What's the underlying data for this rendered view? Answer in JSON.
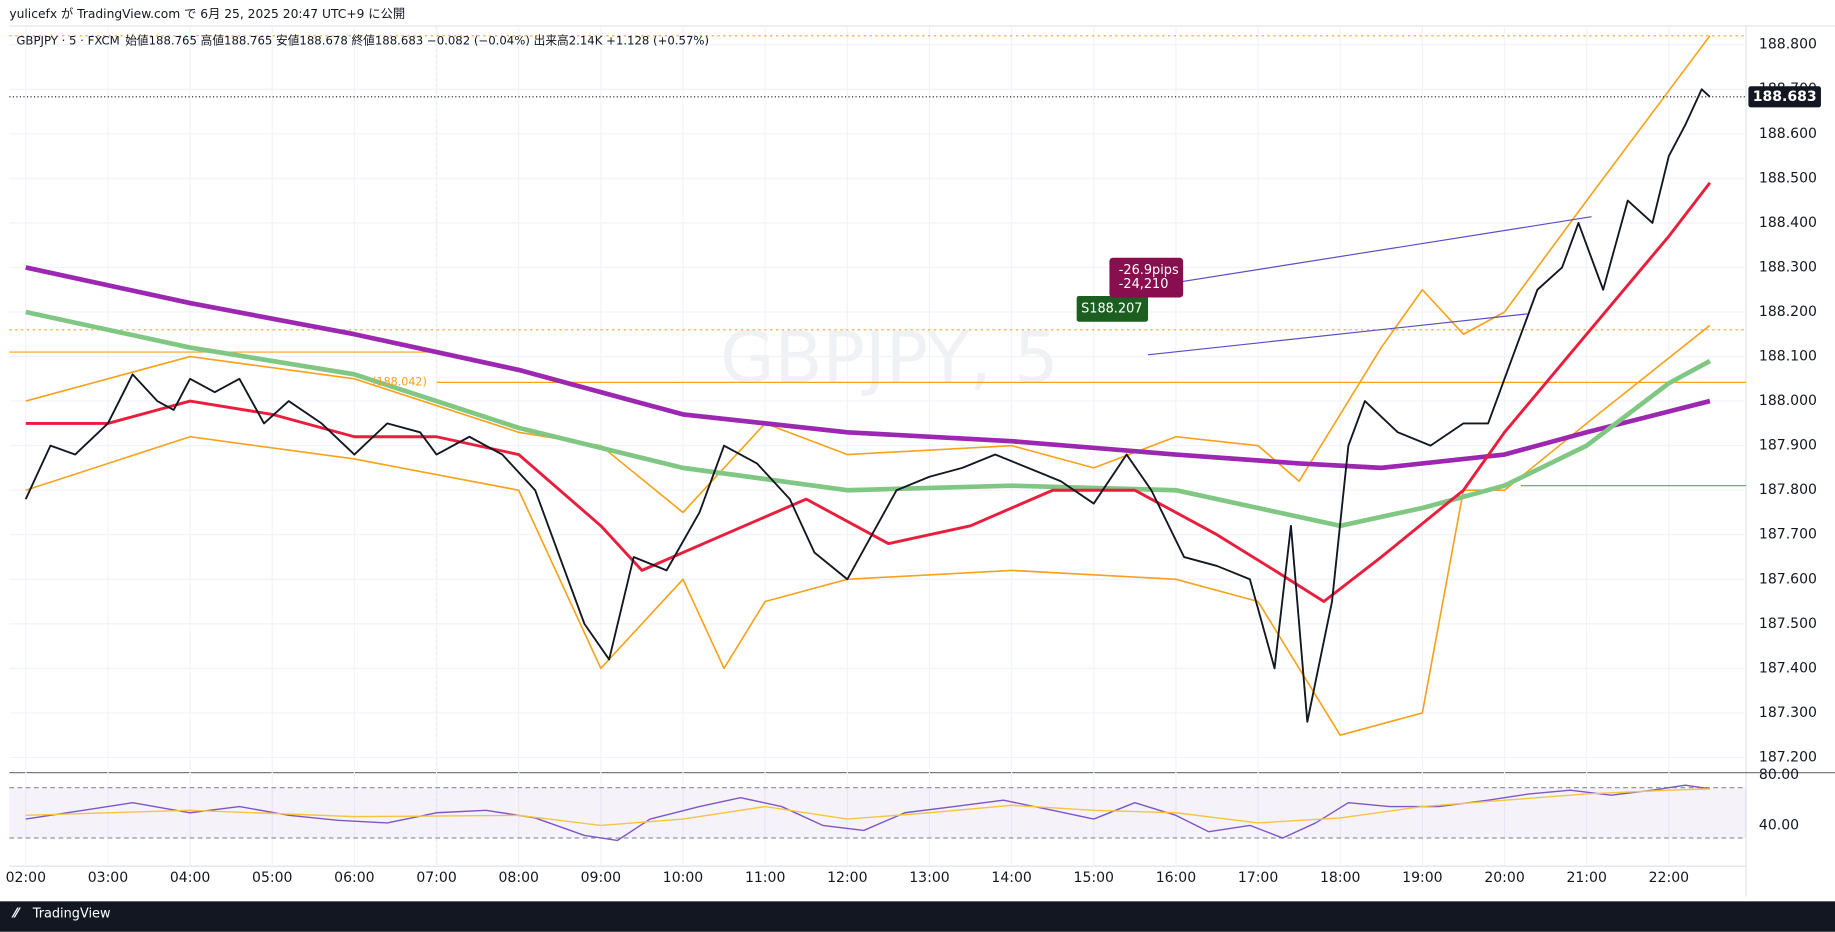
{
  "header": {
    "published": "yulicefx が TradingView.com で 6月 25, 2025 20:47 UTC+9 に公開"
  },
  "footer": {
    "brand": "TradingView"
  },
  "chart_data": [
    {
      "type": "line",
      "title": "GBPJPY · 5 · FXCM",
      "ohlc_text": "始値188.765 高値188.765 安値188.678 終値188.683 −0.082 (−0.04%) 出来高2.14K +1.128 (+0.57%)",
      "watermark": "GBPJPY, 5",
      "xlim": [
        1.8,
        22.94
      ],
      "ylim": [
        187.166,
        188.842
      ],
      "xticks": [
        {
          "value": 2,
          "label": "02:00"
        },
        {
          "value": 3,
          "label": "03:00"
        },
        {
          "value": 4,
          "label": "04:00"
        },
        {
          "value": 5,
          "label": "05:00"
        },
        {
          "value": 6,
          "label": "06:00"
        },
        {
          "value": 7,
          "label": "07:00"
        },
        {
          "value": 8,
          "label": "08:00"
        },
        {
          "value": 9,
          "label": "09:00"
        },
        {
          "value": 10,
          "label": "10:00"
        },
        {
          "value": 11,
          "label": "11:00"
        },
        {
          "value": 12,
          "label": "12:00"
        },
        {
          "value": 13,
          "label": "13:00"
        },
        {
          "value": 14,
          "label": "14:00"
        },
        {
          "value": 15,
          "label": "15:00"
        },
        {
          "value": 16,
          "label": "16:00"
        },
        {
          "value": 17,
          "label": "17:00"
        },
        {
          "value": 18,
          "label": "18:00"
        },
        {
          "value": 19,
          "label": "19:00"
        },
        {
          "value": 20,
          "label": "20:00"
        },
        {
          "value": 21,
          "label": "21:00"
        },
        {
          "value": 22,
          "label": "22:00"
        }
      ],
      "yticks": [
        {
          "value": 187.2,
          "label": "187.200"
        },
        {
          "value": 187.3,
          "label": "187.300"
        },
        {
          "value": 187.4,
          "label": "187.400"
        },
        {
          "value": 187.5,
          "label": "187.500"
        },
        {
          "value": 187.6,
          "label": "187.600"
        },
        {
          "value": 187.7,
          "label": "187.700"
        },
        {
          "value": 187.8,
          "label": "187.800"
        },
        {
          "value": 187.9,
          "label": "187.900"
        },
        {
          "value": 188.0,
          "label": "188.000"
        },
        {
          "value": 188.1,
          "label": "188.100"
        },
        {
          "value": 188.2,
          "label": "188.200"
        },
        {
          "value": 188.3,
          "label": "188.300"
        },
        {
          "value": 188.4,
          "label": "188.400"
        },
        {
          "value": 188.5,
          "label": "188.500"
        },
        {
          "value": 188.6,
          "label": "188.600"
        },
        {
          "value": 188.7,
          "label": "188.700"
        },
        {
          "value": 188.8,
          "label": "188.800"
        }
      ],
      "grid": true,
      "last_price": 188.683,
      "position_label": {
        "value": 188.207,
        "label": "S188.207"
      },
      "pnl_labels": [
        "-26.9pips",
        "-24,210"
      ],
      "hlines": [
        {
          "value": 188.82,
          "color": "#f7a21b",
          "dash": true
        },
        {
          "value": 188.16,
          "color": "#f7a21b",
          "dash": true
        },
        {
          "value": 188.042,
          "label": "(188.042)",
          "color": "#f7a21b",
          "dash": false,
          "xlim": [
            7,
            22.94
          ]
        },
        {
          "value": 188.11,
          "color": "#f7a21b",
          "dash": false,
          "xlim": [
            1.8,
            7
          ]
        },
        {
          "value": 187.81,
          "color": "#4caf50",
          "dash": false,
          "xlim": [
            20.2,
            22.94
          ]
        }
      ],
      "series": [
        {
          "name": "BB upper",
          "color": "#f7a21b",
          "width": 1.4,
          "x": [
            2,
            4,
            6,
            8,
            9,
            10,
            11,
            12,
            14,
            15,
            16,
            17,
            17.5,
            18.5,
            19,
            19.5,
            20,
            21,
            22.5
          ],
          "values": [
            188.0,
            188.1,
            188.05,
            187.93,
            187.9,
            187.75,
            187.95,
            187.88,
            187.9,
            187.85,
            187.92,
            187.9,
            187.82,
            188.12,
            188.25,
            188.15,
            188.2,
            188.45,
            188.82
          ]
        },
        {
          "name": "BB lower",
          "color": "#f7a21b",
          "width": 1.4,
          "x": [
            2,
            4,
            6,
            8,
            9,
            10,
            10.5,
            11,
            12,
            14,
            16,
            17,
            18,
            19,
            19.5,
            20,
            21,
            22.5
          ],
          "values": [
            187.8,
            187.92,
            187.87,
            187.8,
            187.4,
            187.6,
            187.4,
            187.55,
            187.6,
            187.62,
            187.6,
            187.55,
            187.25,
            187.3,
            187.8,
            187.8,
            187.95,
            188.17
          ]
        },
        {
          "name": "MA long",
          "color": "#9c27b0",
          "width": 4,
          "x": [
            2,
            4,
            6,
            8,
            10,
            12,
            14,
            16,
            17.5,
            18.5,
            20,
            21,
            22.5
          ],
          "values": [
            188.3,
            188.22,
            188.15,
            188.07,
            187.97,
            187.93,
            187.91,
            187.88,
            187.86,
            187.85,
            187.88,
            187.93,
            188.0
          ]
        },
        {
          "name": "MA mid",
          "color": "#81c784",
          "width": 4,
          "x": [
            2,
            4,
            6,
            8,
            10,
            12,
            14,
            16,
            17,
            18,
            19,
            20,
            21,
            22,
            22.5
          ],
          "values": [
            188.2,
            188.12,
            188.06,
            187.94,
            187.85,
            187.8,
            187.81,
            187.8,
            187.76,
            187.72,
            187.76,
            187.81,
            187.9,
            188.04,
            188.09
          ]
        },
        {
          "name": "MA short",
          "color": "#e91e3c",
          "width": 2.5,
          "x": [
            2,
            3,
            4,
            5,
            6,
            7,
            8,
            9,
            9.5,
            10.5,
            11.5,
            12.5,
            13.5,
            14.5,
            15.5,
            16.5,
            17.2,
            17.8,
            18.5,
            19.5,
            20,
            21,
            22,
            22.5
          ],
          "values": [
            187.95,
            187.95,
            188.0,
            187.97,
            187.92,
            187.92,
            187.88,
            187.72,
            187.62,
            187.7,
            187.78,
            187.68,
            187.72,
            187.8,
            187.8,
            187.7,
            187.62,
            187.55,
            187.65,
            187.8,
            187.93,
            188.15,
            188.37,
            188.49
          ]
        },
        {
          "name": "Price",
          "color": "#131722",
          "width": 1.6,
          "x": [
            2.0,
            2.3,
            2.6,
            3.0,
            3.3,
            3.6,
            3.8,
            4.0,
            4.3,
            4.6,
            4.9,
            5.2,
            5.6,
            6.0,
            6.4,
            6.8,
            7.0,
            7.4,
            7.8,
            8.2,
            8.5,
            8.8,
            9.1,
            9.4,
            9.8,
            10.2,
            10.5,
            10.9,
            11.3,
            11.6,
            12.0,
            12.3,
            12.6,
            13.0,
            13.4,
            13.8,
            14.2,
            14.6,
            15.0,
            15.4,
            15.7,
            16.1,
            16.5,
            16.9,
            17.2,
            17.4,
            17.6,
            17.9,
            18.1,
            18.3,
            18.7,
            19.1,
            19.5,
            19.8,
            20.1,
            20.4,
            20.7,
            20.9,
            21.2,
            21.5,
            21.8,
            22.0,
            22.2,
            22.4,
            22.5
          ],
          "values": [
            187.78,
            187.9,
            187.88,
            187.95,
            188.06,
            188.0,
            187.98,
            188.05,
            188.02,
            188.05,
            187.95,
            188.0,
            187.95,
            187.88,
            187.95,
            187.93,
            187.88,
            187.92,
            187.88,
            187.8,
            187.65,
            187.5,
            187.42,
            187.65,
            187.62,
            187.75,
            187.9,
            187.86,
            187.78,
            187.66,
            187.6,
            187.7,
            187.8,
            187.83,
            187.85,
            187.88,
            187.85,
            187.82,
            187.77,
            187.88,
            187.8,
            187.65,
            187.63,
            187.6,
            187.4,
            187.72,
            187.28,
            187.55,
            187.9,
            188.0,
            187.93,
            187.9,
            187.95,
            187.95,
            188.1,
            188.25,
            188.3,
            188.4,
            188.25,
            188.45,
            188.4,
            188.55,
            188.62,
            188.7,
            188.683
          ]
        }
      ]
    },
    {
      "type": "line",
      "xlim": [
        1.8,
        22.94
      ],
      "ylim": [
        7.6,
        81.9
      ],
      "yticks": [
        {
          "value": 80,
          "label": "80.00"
        },
        {
          "value": 40,
          "label": "40.00"
        }
      ],
      "band": [
        30,
        70
      ],
      "series": [
        {
          "name": "RSI",
          "color": "#7e57c2",
          "width": 1.2,
          "x": [
            2,
            2.7,
            3.3,
            4,
            4.6,
            5.2,
            5.8,
            6.4,
            7,
            7.6,
            8.2,
            8.8,
            9.2,
            9.6,
            10.2,
            10.7,
            11.2,
            11.7,
            12.2,
            12.7,
            13.3,
            13.9,
            14.5,
            15,
            15.5,
            16,
            16.4,
            16.9,
            17.3,
            17.7,
            18.1,
            18.6,
            19.2,
            19.8,
            20.3,
            20.8,
            21.3,
            21.8,
            22.2,
            22.5
          ],
          "values": [
            45,
            52,
            58,
            50,
            55,
            48,
            44,
            42,
            50,
            52,
            46,
            32,
            28,
            45,
            55,
            62,
            55,
            40,
            36,
            50,
            55,
            60,
            52,
            45,
            58,
            48,
            35,
            40,
            30,
            42,
            58,
            55,
            55,
            60,
            65,
            68,
            64,
            68,
            72,
            69
          ]
        },
        {
          "name": "Signal",
          "color": "#f5c542",
          "width": 1.2,
          "x": [
            2,
            4,
            6,
            8,
            9,
            10,
            11,
            12,
            13,
            14,
            15,
            16,
            17,
            18,
            19,
            20,
            21,
            22,
            22.5
          ],
          "values": [
            48,
            52,
            47,
            48,
            40,
            45,
            55,
            45,
            50,
            56,
            52,
            50,
            42,
            46,
            55,
            60,
            65,
            68,
            69
          ]
        }
      ]
    }
  ]
}
